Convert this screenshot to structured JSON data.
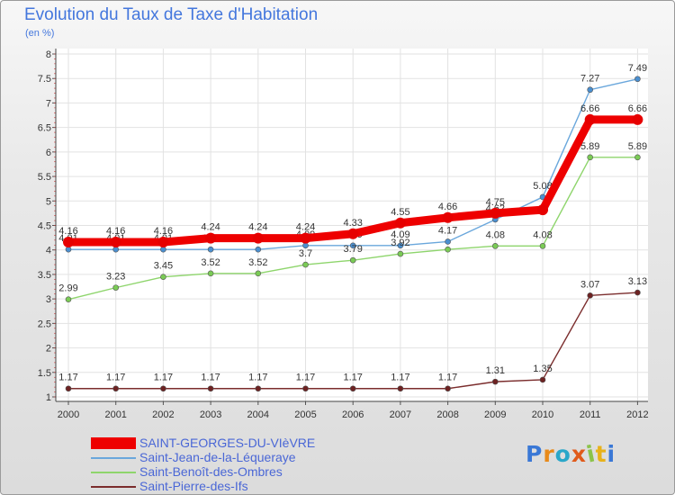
{
  "header": {
    "title": "Evolution du Taux de Taxe d'Habitation",
    "subtitle": "(en %)"
  },
  "brand": {
    "text": "Proxiti"
  },
  "chart_data": {
    "type": "line",
    "title": "Evolution du Taux de Taxe d'Habitation",
    "ylabel": "(en %)",
    "xlabel": "",
    "ylim": [
      1,
      8
    ],
    "yticks": [
      "1",
      "1.5",
      "2",
      "2.5",
      "3",
      "3.5",
      "4",
      "4.5",
      "5",
      "5.5",
      "6",
      "6.5",
      "7",
      "7.5",
      "8"
    ],
    "grid": true,
    "legend_position": "bottom-left",
    "x": [
      "2000",
      "2001",
      "2002",
      "2003",
      "2004",
      "2005",
      "2006",
      "2007",
      "2008",
      "2009",
      "2010",
      "2011",
      "2012"
    ],
    "series": [
      {
        "name": "Saint-Jean-de-la-Léqueraye",
        "color": "#6aa7dc",
        "marker": "#4a8fd0",
        "values": [
          4.01,
          4.01,
          4.01,
          4.01,
          4.01,
          4.09,
          4.09,
          4.09,
          4.17,
          4.62,
          5.08,
          7.27,
          7.49
        ],
        "labels": [
          "4.01",
          "4.01",
          "4.01",
          "4.01",
          "4.01",
          "4.09",
          "4.09",
          "4.09",
          "4.17",
          "4.62",
          "5.08",
          "7.27",
          "7.49"
        ],
        "show_labels": [
          true,
          true,
          true,
          true,
          true,
          true,
          true,
          true,
          true,
          true,
          true,
          true,
          true
        ]
      },
      {
        "name": "Saint-Benoît-des-Ombres",
        "color": "#8ed56c",
        "marker": "#7acb55",
        "values": [
          2.99,
          3.23,
          3.45,
          3.52,
          3.52,
          3.7,
          3.79,
          3.92,
          4.01,
          4.08,
          4.08,
          5.89,
          5.89
        ],
        "labels": [
          "2.99",
          "3.23",
          "3.45",
          "3.52",
          "3.52",
          "3.7",
          "3.79",
          "3.92",
          "4.01",
          "4.08",
          "4.08",
          "5.89",
          "5.89"
        ],
        "show_labels": [
          true,
          true,
          true,
          true,
          true,
          true,
          true,
          true,
          false,
          true,
          true,
          true,
          true
        ]
      },
      {
        "name": "Saint-Pierre-des-Ifs",
        "color": "#7b2d2d",
        "marker": "#6d2222",
        "values": [
          1.17,
          1.17,
          1.17,
          1.17,
          1.17,
          1.17,
          1.17,
          1.17,
          1.17,
          1.31,
          1.35,
          3.07,
          3.13
        ],
        "labels": [
          "1.17",
          "1.17",
          "1.17",
          "1.17",
          "1.17",
          "1.17",
          "1.17",
          "1.17",
          "1.17",
          "1.31",
          "1.35",
          "3.07",
          "3.13"
        ],
        "show_labels": [
          true,
          true,
          true,
          true,
          true,
          true,
          true,
          true,
          true,
          true,
          true,
          true,
          true
        ]
      },
      {
        "name": "SAINT-GEORGES-DU-VIèVRE",
        "color": "#ee0000",
        "marker": "#e60000",
        "thick": true,
        "values": [
          4.16,
          4.16,
          4.16,
          4.24,
          4.24,
          4.24,
          4.33,
          4.55,
          4.66,
          4.75,
          4.82,
          6.66,
          6.66
        ],
        "labels": [
          "4.16",
          "4.16",
          "4.16",
          "4.24",
          "4.24",
          "4.24",
          "4.33",
          "4.55",
          "4.66",
          "4.75",
          "4.82",
          "6.66",
          "6.66"
        ],
        "show_labels": [
          true,
          true,
          true,
          true,
          true,
          true,
          true,
          true,
          true,
          true,
          false,
          true,
          true
        ]
      }
    ]
  },
  "legend": {
    "items": [
      {
        "label": "SAINT-GEORGES-DU-VIèVRE",
        "color": "#ee0000",
        "style": "thick"
      },
      {
        "label": "Saint-Jean-de-la-Léqueraye",
        "color": "#6aa7dc",
        "style": "thin"
      },
      {
        "label": "Saint-Benoît-des-Ombres",
        "color": "#8ed56c",
        "style": "thin"
      },
      {
        "label": "Saint-Pierre-des-Ifs",
        "color": "#7b2d2d",
        "style": "thin"
      }
    ]
  },
  "brand_colors": [
    "#3a78d6",
    "#e88a1a",
    "#2aa7c9",
    "#e05a1a",
    "#8bc34a",
    "#e8b21a",
    "#3a78d6"
  ]
}
